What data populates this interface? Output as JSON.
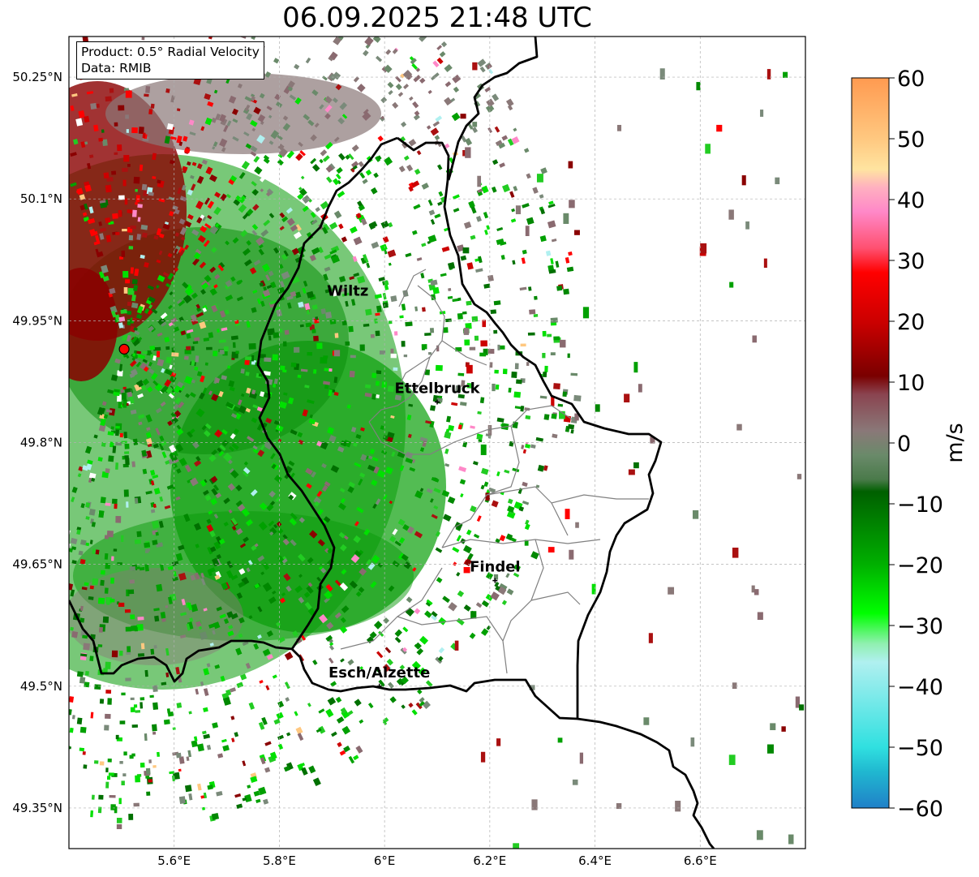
{
  "title": "06.09.2025 21:48 UTC",
  "info": {
    "product": "Product: 0.5° Radial Velocity",
    "data_source": "Data: RMIB"
  },
  "lat_ticks": [
    {
      "label": "50.25°N",
      "value": 50.25
    },
    {
      "label": "50.1°N",
      "value": 50.1
    },
    {
      "label": "49.95°N",
      "value": 49.95
    },
    {
      "label": "49.8°N",
      "value": 49.8
    },
    {
      "label": "49.65°N",
      "value": 49.65
    },
    {
      "label": "49.5°N",
      "value": 49.5
    },
    {
      "label": "49.35°N",
      "value": 49.35
    }
  ],
  "lon_ticks": [
    {
      "label": "5.6°E",
      "value": 5.6
    },
    {
      "label": "5.8°E",
      "value": 5.8
    },
    {
      "label": "6°E",
      "value": 6.0
    },
    {
      "label": "6.2°E",
      "value": 6.2
    },
    {
      "label": "6.4°E",
      "value": 6.4
    },
    {
      "label": "6.6°E",
      "value": 6.6
    }
  ],
  "extent": {
    "lon_min": 5.4,
    "lon_max": 6.8,
    "lat_min": 49.3,
    "lat_max": 50.3
  },
  "cities": [
    {
      "name": "Wiltz",
      "lon": 5.93,
      "lat": 49.97,
      "marker": false
    },
    {
      "name": "Ettelbruck",
      "lon": 6.1,
      "lat": 49.85,
      "marker": true
    },
    {
      "name": "Findel",
      "lon": 6.21,
      "lat": 49.63,
      "marker": true
    },
    {
      "name": "Esch/Alzette",
      "lon": 5.99,
      "lat": 49.5,
      "marker": true
    }
  ],
  "radar_site": {
    "lon": 5.505,
    "lat": 49.915
  },
  "colorbar": {
    "label": "m/s",
    "ticks": [
      "60",
      "50",
      "40",
      "30",
      "20",
      "10",
      "0",
      "−10",
      "−20",
      "−30",
      "−40",
      "−50",
      "−60"
    ],
    "min": -60,
    "max": 60,
    "stops": [
      {
        "v": 60,
        "c": "#ff9a50"
      },
      {
        "v": 50,
        "c": "#ffc880"
      },
      {
        "v": 45,
        "c": "#ffe4a0"
      },
      {
        "v": 42,
        "c": "#ffb0c0"
      },
      {
        "v": 38,
        "c": "#ff88c8"
      },
      {
        "v": 32,
        "c": "#ff5070"
      },
      {
        "v": 28,
        "c": "#ff0000"
      },
      {
        "v": 20,
        "c": "#cc0000"
      },
      {
        "v": 11,
        "c": "#7a0000"
      },
      {
        "v": 8,
        "c": "#8a4450"
      },
      {
        "v": 2,
        "c": "#8a7878"
      },
      {
        "v": -2,
        "c": "#6a8a6a"
      },
      {
        "v": -6,
        "c": "#4a7a4a"
      },
      {
        "v": -8,
        "c": "#006000"
      },
      {
        "v": -20,
        "c": "#00b000"
      },
      {
        "v": -28,
        "c": "#00ff00"
      },
      {
        "v": -33,
        "c": "#90f0b0"
      },
      {
        "v": -36,
        "c": "#b0f0f0"
      },
      {
        "v": -50,
        "c": "#30e0e0"
      },
      {
        "v": -54,
        "c": "#20b8d0"
      },
      {
        "v": -60,
        "c": "#2080c8"
      }
    ]
  }
}
